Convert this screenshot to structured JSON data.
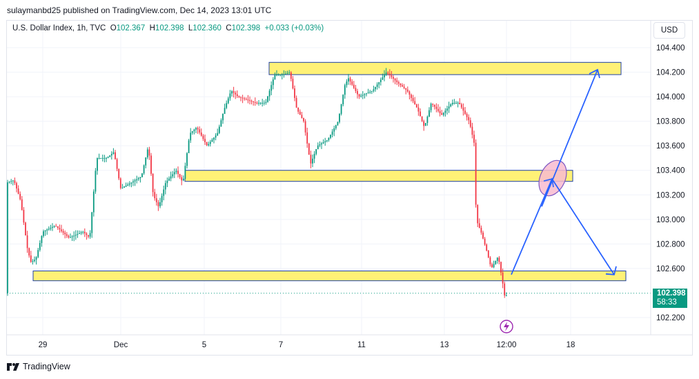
{
  "header": {
    "publish_line": "sulaymanbd25 published on TradingView.com, Dec 14, 2023 13:01 UTC"
  },
  "legend": {
    "symbol": "U.S. Dollar Index, 1h, TVC",
    "o_label": "O",
    "o_value": "102.367",
    "h_label": "H",
    "h_value": "102.398",
    "l_label": "L",
    "l_value": "102.360",
    "c_label": "C",
    "c_value": "102.398",
    "change": "+0.033 (+0.03%)"
  },
  "currency_button": "USD",
  "last_price": {
    "value": "102.398",
    "countdown": "58:33"
  },
  "footer": {
    "brand": "TradingView"
  },
  "colors": {
    "up": "#089981",
    "down": "#f23645",
    "zone_fill": "#fff176",
    "zone_border": "#1c3fa8",
    "arrow": "#2962ff",
    "ellipse_fill": "#f8bbd0",
    "ellipse_border": "#7e57c2"
  },
  "chart_data": {
    "type": "candlestick",
    "y_ticks": [
      104.4,
      104.2,
      104.0,
      103.8,
      103.6,
      103.4,
      103.2,
      103.0,
      102.8,
      102.6,
      102.2
    ],
    "y_tick_labels": [
      "104.400",
      "104.200",
      "104.000",
      "103.800",
      "103.600",
      "103.400",
      "103.200",
      "103.000",
      "102.800",
      "102.600",
      "102.200"
    ],
    "x_tick_labels": [
      "29",
      "Dec",
      "5",
      "7",
      "11",
      "13",
      "12:00",
      "18"
    ],
    "zones": [
      {
        "y_low": 104.18,
        "y_high": 104.28
      },
      {
        "y_low": 103.31,
        "y_high": 103.4
      },
      {
        "y_low": 102.5,
        "y_high": 102.58
      }
    ],
    "path": [
      {
        "x": "Nov 27",
        "y": 103.3
      },
      {
        "x": "Nov 28",
        "y": 102.65
      },
      {
        "x": "Nov 29",
        "y": 102.9
      },
      {
        "x": "Nov 30",
        "y": 103.5
      },
      {
        "x": "Dec 1",
        "y": 103.25
      },
      {
        "x": "Dec 4",
        "y": 103.1
      },
      {
        "x": "Dec 5",
        "y": 103.7
      },
      {
        "x": "Dec 6",
        "y": 104.05
      },
      {
        "x": "Dec 7",
        "y": 104.18
      },
      {
        "x": "Dec 8",
        "y": 103.45
      },
      {
        "x": "Dec 11",
        "y": 104.1
      },
      {
        "x": "Dec 12",
        "y": 104.2
      },
      {
        "x": "Dec 13",
        "y": 103.95
      },
      {
        "x": "Dec 14",
        "y": 102.4
      }
    ],
    "projection": [
      {
        "label": "start",
        "y": 102.55
      },
      {
        "label": "mid",
        "y": 103.33
      },
      {
        "label": "target_up",
        "y": 104.22
      },
      {
        "label": "target_down",
        "y": 102.55
      }
    ],
    "last_close": 102.398
  }
}
